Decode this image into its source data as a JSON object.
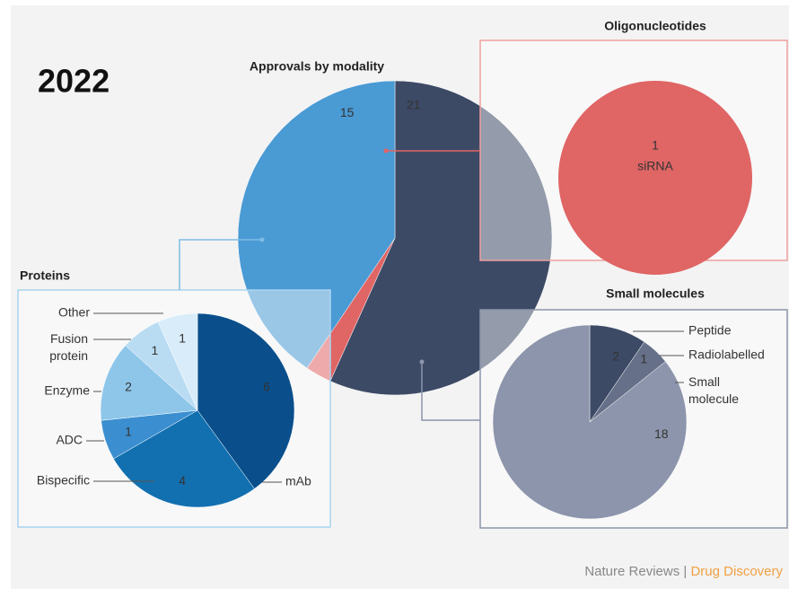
{
  "year": "2022",
  "footer": {
    "publisher": "Nature Reviews",
    "separator": "|",
    "journal": "Drug Discovery"
  },
  "chart_data": [
    {
      "type": "pie",
      "title": "Approvals by modality",
      "values": [
        21,
        1,
        15
      ],
      "colors": [
        "#3d4a66",
        "#e06565",
        "#4a9ad4"
      ]
    },
    {
      "type": "pie",
      "title": "Proteins",
      "categories": [
        "mAb",
        "Bispecific",
        "ADC",
        "Enzyme",
        "Fusion protein",
        "Other"
      ],
      "values": [
        6,
        4,
        1,
        2,
        1,
        1
      ],
      "colors": [
        "#0a4f8c",
        "#1270b0",
        "#3b8fd0",
        "#8ec6ea",
        "#b9dcf3",
        "#d8ecf9"
      ]
    },
    {
      "type": "pie",
      "title": "Oligonucleotides",
      "categories": [
        "siRNA"
      ],
      "values": [
        1
      ],
      "colors": [
        "#e06565"
      ]
    },
    {
      "type": "pie",
      "title": "Small molecules",
      "categories": [
        "Peptide",
        "Radiolabelled",
        "Small molecule"
      ],
      "values": [
        2,
        1,
        18
      ],
      "colors": [
        "#3d4a66",
        "#667088",
        "#8c95ab"
      ]
    }
  ]
}
